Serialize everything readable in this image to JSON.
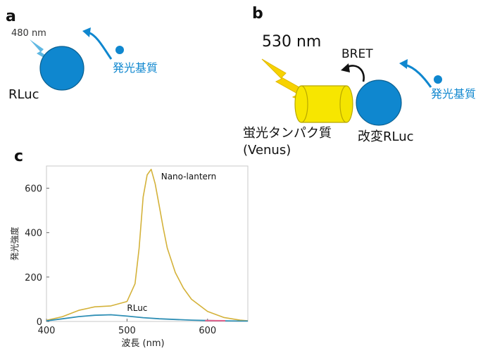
{
  "panel_a": {
    "letter": "a",
    "wavelength": "480 nm",
    "enzyme": "RLuc",
    "substrate": "発光基質"
  },
  "panel_b": {
    "letter": "b",
    "wavelength": "530 nm",
    "transfer": "BRET",
    "protein_line1": "蛍光タンパク質",
    "protein_line2": "(Venus)",
    "enzyme": "改変RLuc",
    "substrate": "発光基質"
  },
  "panel_c": {
    "letter": "c"
  },
  "colors": {
    "blue": "#0f87cf",
    "light_blue": "#4aa8dc",
    "yellow": "#f7e600",
    "yellow_stroke": "#c9b800",
    "orange_bolt": "#f5c400",
    "curve_yellow": "#d4b23a",
    "curve_blue": "#2f8fb5",
    "curve_pink": "#e0608a"
  },
  "chart_data": {
    "type": "line",
    "xlabel": "波長 (nm)",
    "ylabel": "発光強度",
    "xlim": [
      400,
      650
    ],
    "ylim": [
      0,
      700
    ],
    "xticks": [
      400,
      500,
      600
    ],
    "yticks": [
      0,
      200,
      400,
      600
    ],
    "series": [
      {
        "name": "Nano-lantern",
        "x": [
          400,
          420,
          440,
          460,
          480,
          500,
          510,
          515,
          520,
          525,
          530,
          535,
          540,
          545,
          550,
          560,
          570,
          580,
          600,
          620,
          640,
          650
        ],
        "y": [
          5,
          22,
          50,
          66,
          70,
          90,
          170,
          330,
          560,
          660,
          685,
          620,
          520,
          420,
          330,
          220,
          150,
          100,
          45,
          18,
          6,
          3
        ]
      },
      {
        "name": "RLuc",
        "x": [
          400,
          420,
          440,
          460,
          480,
          500,
          520,
          540,
          560,
          580,
          600,
          620,
          640,
          650
        ],
        "y": [
          3,
          12,
          22,
          28,
          30,
          24,
          17,
          12,
          9,
          6,
          4,
          3,
          2,
          2
        ]
      }
    ]
  }
}
